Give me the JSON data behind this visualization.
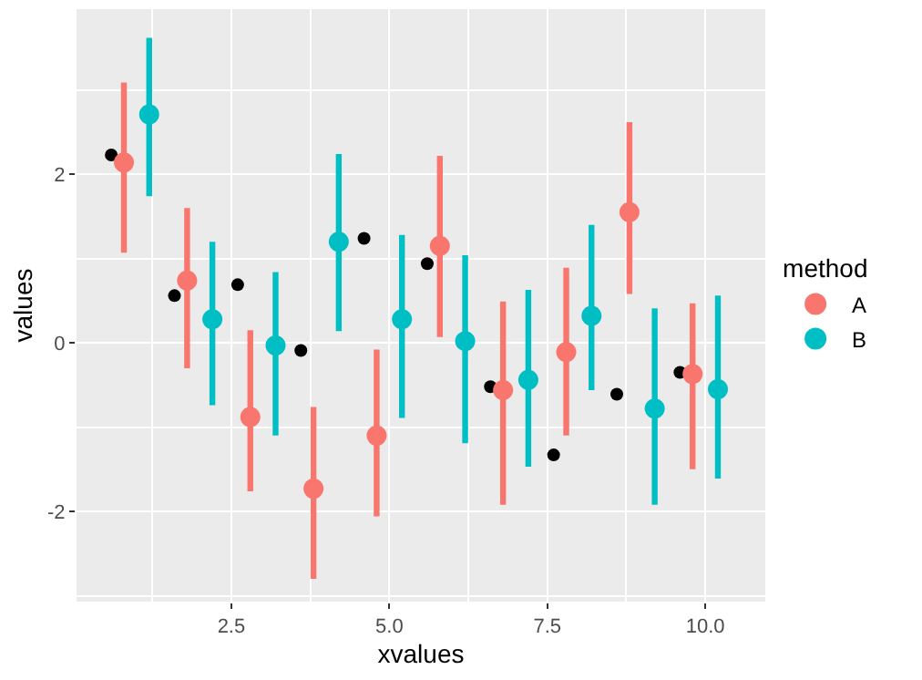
{
  "chart_data": {
    "type": "scatter",
    "xlabel": "xvalues",
    "ylabel": "values",
    "legend_title": "method",
    "legend": "right",
    "grid": true,
    "marker": "circle",
    "xlim": [
      0.05,
      10.95
    ],
    "xticks": [
      2.5,
      {
        "value": 5,
        "label": "5.0"
      },
      7.5,
      {
        "value": 10,
        "label": "10.0"
      }
    ],
    "ylim": [
      -3.07,
      3.96
    ],
    "yticks": [
      -2,
      0,
      2
    ],
    "series": [
      {
        "color": "#000000",
        "x": [
          0.6,
          1.6,
          2.6,
          3.6,
          4.6,
          5.6,
          6.6,
          7.6,
          8.6,
          9.6
        ],
        "values": [
          2.23,
          0.56,
          0.69,
          -0.09,
          1.24,
          0.94,
          -0.52,
          -1.33,
          -0.61,
          -0.35
        ]
      },
      {
        "name": "A",
        "color": "#f8766d",
        "x": [
          0.8,
          1.8,
          2.8,
          3.8,
          4.8,
          5.8,
          6.8,
          7.8,
          8.8,
          9.8
        ],
        "values": [
          2.14,
          0.74,
          -0.88,
          -1.73,
          -1.1,
          1.15,
          -0.56,
          -0.11,
          1.55,
          -0.37
        ],
        "errors": [
          [
            1.07,
            3.09
          ],
          [
            -0.3,
            1.6
          ],
          [
            -1.76,
            0.15
          ],
          [
            -2.8,
            -0.76
          ],
          [
            -2.06,
            -0.08
          ],
          [
            0.07,
            2.22
          ],
          [
            -1.92,
            0.49
          ],
          [
            -1.1,
            0.89
          ],
          [
            0.58,
            2.62
          ],
          [
            -1.5,
            0.47
          ]
        ]
      },
      {
        "name": "B",
        "color": "#00bfc4",
        "x": [
          1.2,
          2.2,
          3.2,
          4.2,
          5.2,
          6.2,
          7.2,
          8.2,
          9.2,
          10.2
        ],
        "values": [
          2.71,
          0.28,
          -0.03,
          1.2,
          0.28,
          0.02,
          -0.44,
          0.32,
          -0.78,
          -0.55
        ],
        "errors": [
          [
            1.74,
            3.62
          ],
          [
            -0.74,
            1.2
          ],
          [
            -1.1,
            0.84
          ],
          [
            0.14,
            2.24
          ],
          [
            -0.89,
            1.28
          ],
          [
            -1.19,
            1.04
          ],
          [
            -1.47,
            0.63
          ],
          [
            -0.56,
            1.4
          ],
          [
            -1.92,
            0.41
          ],
          [
            -1.61,
            0.56
          ]
        ]
      }
    ]
  }
}
